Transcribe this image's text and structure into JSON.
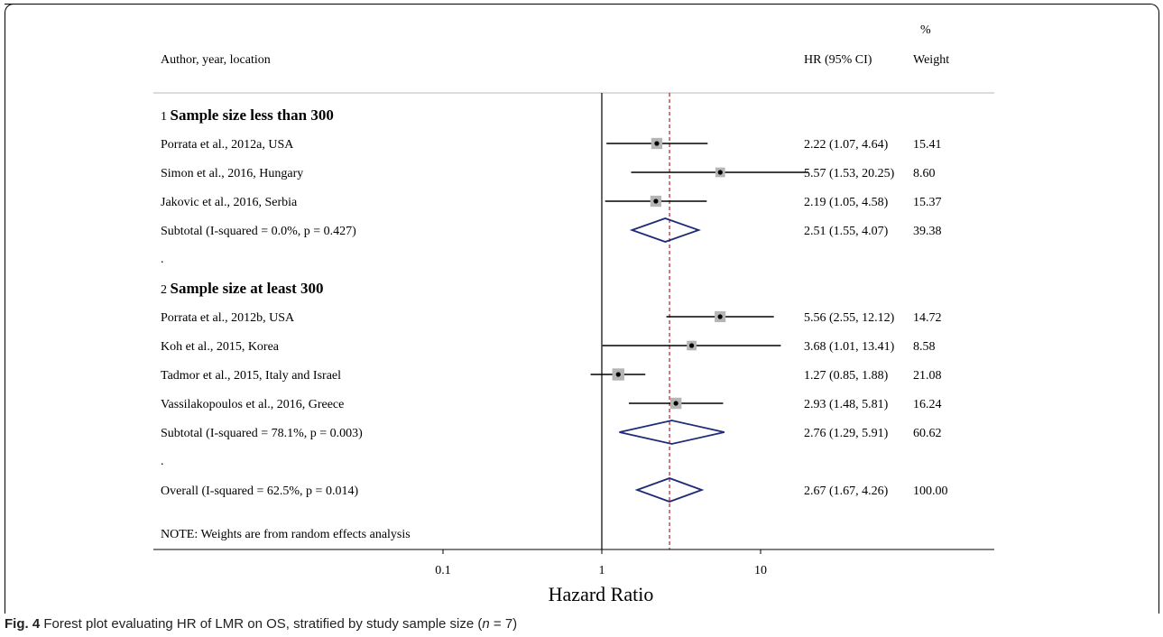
{
  "headers": {
    "study": "Author, year, location",
    "hr": "HR (95% CI)",
    "weight_top": "%",
    "weight": "Weight"
  },
  "caption": {
    "label": "Fig. 4",
    "text": " Forest plot evaluating HR of LMR on OS, stratified by study sample size (",
    "n_var": "n",
    "n_rest": " = 7)"
  },
  "note": "NOTE: Weights are from random effects analysis",
  "chart_data": {
    "type": "forest",
    "title": "",
    "xlabel": "Hazard Ratio",
    "xscale": "log",
    "xlim": [
      0.072,
      27
    ],
    "xticks": [
      {
        "value": 0.1,
        "label": "0.1"
      },
      {
        "value": 1,
        "label": "1"
      },
      {
        "value": 10,
        "label": "10"
      }
    ],
    "reference_line": 1,
    "overall_line": 2.67,
    "rows": [
      {
        "kind": "group",
        "num": "1",
        "text": "Sample size less than 300"
      },
      {
        "kind": "study",
        "label": "Porrata et al., 2012a, USA",
        "hr": 2.22,
        "lo": 1.07,
        "hi": 4.64,
        "ci_text": "2.22 (1.07, 4.64)",
        "weight": "15.41"
      },
      {
        "kind": "study",
        "label": "Simon et al., 2016, Hungary",
        "hr": 5.57,
        "lo": 1.53,
        "hi": 20.25,
        "ci_text": "5.57 (1.53, 20.25)",
        "weight": "8.60"
      },
      {
        "kind": "study",
        "label": "Jakovic et al., 2016, Serbia",
        "hr": 2.19,
        "lo": 1.05,
        "hi": 4.58,
        "ci_text": "2.19 (1.05, 4.58)",
        "weight": "15.37"
      },
      {
        "kind": "subtotal",
        "label": "Subtotal  (I-squared = 0.0%, p = 0.427)",
        "hr": 2.51,
        "lo": 1.55,
        "hi": 4.07,
        "ci_text": "2.51 (1.55, 4.07)",
        "weight": "39.38"
      },
      {
        "kind": "dot",
        "text": "."
      },
      {
        "kind": "group",
        "num": "2",
        "text": "Sample size at least 300"
      },
      {
        "kind": "study",
        "label": "Porrata et al., 2012b, USA",
        "hr": 5.56,
        "lo": 2.55,
        "hi": 12.12,
        "ci_text": "5.56 (2.55, 12.12)",
        "weight": "14.72"
      },
      {
        "kind": "study",
        "label": "Koh et al., 2015, Korea",
        "hr": 3.68,
        "lo": 1.01,
        "hi": 13.41,
        "ci_text": "3.68 (1.01, 13.41)",
        "weight": "8.58"
      },
      {
        "kind": "study",
        "label": "Tadmor et al., 2015, Italy and Israel",
        "hr": 1.27,
        "lo": 0.85,
        "hi": 1.88,
        "ci_text": "1.27 (0.85, 1.88)",
        "weight": "21.08"
      },
      {
        "kind": "study",
        "label": "Vassilakopoulos et al., 2016, Greece",
        "hr": 2.93,
        "lo": 1.48,
        "hi": 5.81,
        "ci_text": "2.93 (1.48, 5.81)",
        "weight": "16.24"
      },
      {
        "kind": "subtotal",
        "label": "Subtotal  (I-squared = 78.1%, p = 0.003)",
        "hr": 2.76,
        "lo": 1.29,
        "hi": 5.91,
        "ci_text": "2.76 (1.29, 5.91)",
        "weight": "60.62"
      },
      {
        "kind": "dot",
        "text": "."
      },
      {
        "kind": "overall",
        "label": "Overall  (I-squared = 62.5%, p = 0.014)",
        "hr": 2.67,
        "lo": 1.67,
        "hi": 4.26,
        "ci_text": "2.67 (1.67, 4.26)",
        "weight": "100.00"
      }
    ],
    "colors": {
      "diamond": "#1f2a78",
      "box": "#b5b5b5",
      "reference": "#000000",
      "overall_line": "#b22222"
    }
  }
}
